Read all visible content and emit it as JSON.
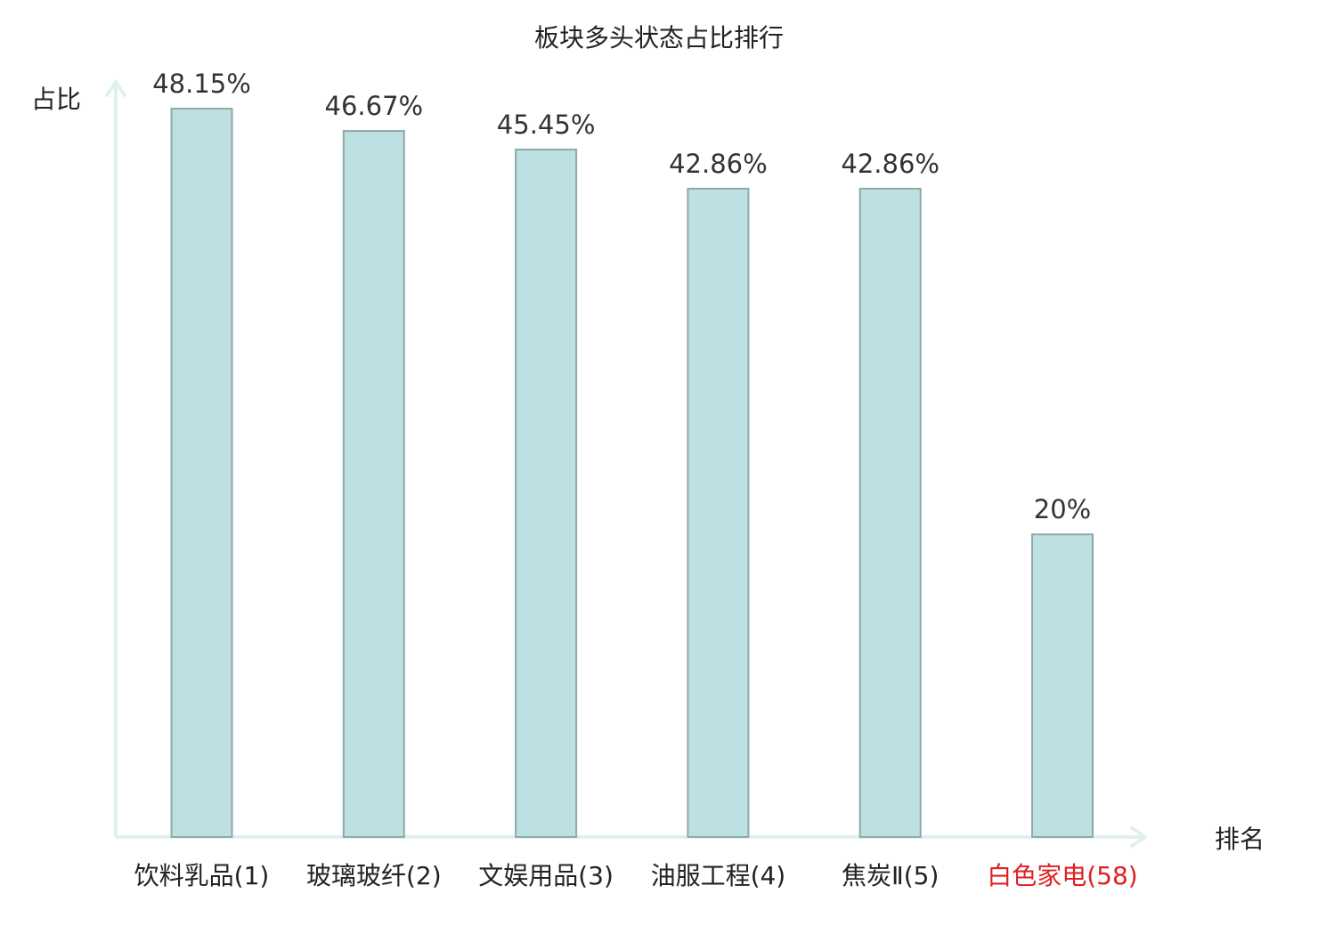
{
  "chart_data": {
    "type": "bar",
    "title": "板块多头状态占比排行",
    "ylabel": "占比",
    "xlabel": "排名",
    "categories": [
      "饮料乳品(1)",
      "玻璃玻纤(2)",
      "文娱用品(3)",
      "油服工程(4)",
      "焦炭Ⅱ(5)",
      "白色家电(58)"
    ],
    "values": [
      48.15,
      46.67,
      45.45,
      42.86,
      42.86,
      20
    ],
    "value_labels": [
      "48.15%",
      "46.67%",
      "45.45%",
      "42.86%",
      "42.86%",
      "20%"
    ],
    "highlight_index": 5,
    "ylim": [
      0,
      55
    ],
    "grid": false,
    "legend": "none",
    "colors": {
      "bar_fill": "#bde0e3",
      "bar_stroke": "#8fa8a8",
      "axis": "#dff1ef",
      "text": "#222222",
      "value_text": "#333333",
      "highlight_text": "#e02020"
    }
  }
}
